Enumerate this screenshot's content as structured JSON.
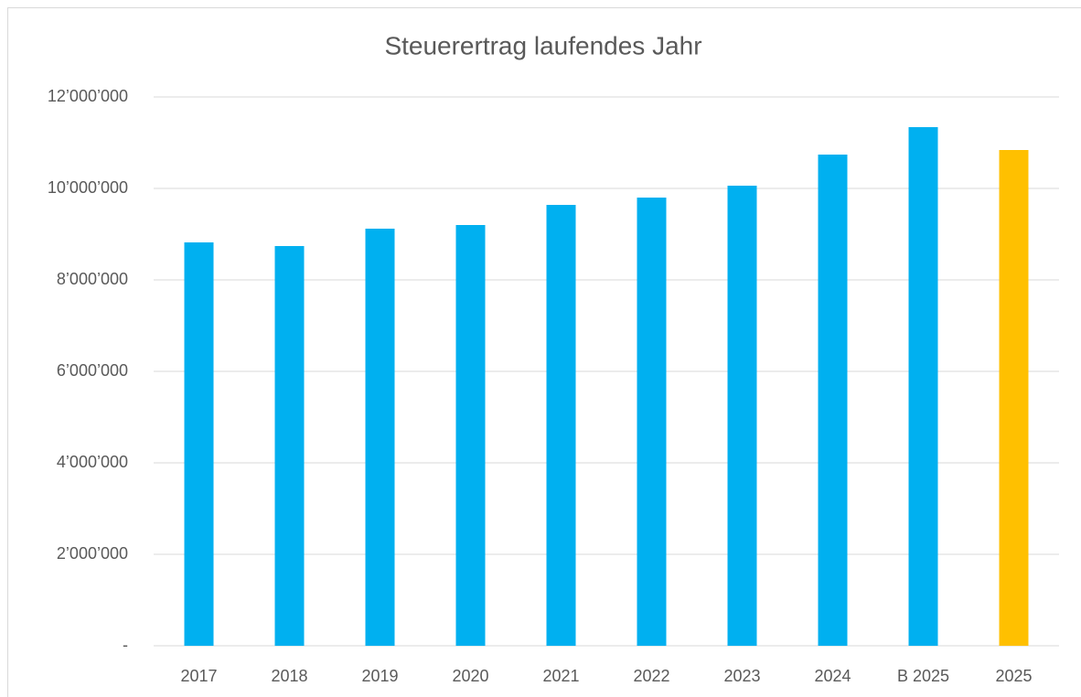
{
  "chart_data": {
    "type": "bar",
    "title": "Steuerertrag laufendes Jahr",
    "categories": [
      "2017",
      "2018",
      "2019",
      "2020",
      "2021",
      "2022",
      "2023",
      "2024",
      "B 2025",
      "2025"
    ],
    "values": [
      8820000,
      8740000,
      9120000,
      9200000,
      9640000,
      9800000,
      10060000,
      10740000,
      11340000,
      10840000
    ],
    "colors": [
      "#00b0f0",
      "#00b0f0",
      "#00b0f0",
      "#00b0f0",
      "#00b0f0",
      "#00b0f0",
      "#00b0f0",
      "#00b0f0",
      "#00b0f0",
      "#ffc000"
    ],
    "ylim": [
      0,
      12000000
    ],
    "yticks": [
      {
        "value": 0,
        "label": "-"
      },
      {
        "value": 2000000,
        "label": "2’000’000"
      },
      {
        "value": 4000000,
        "label": "4’000’000"
      },
      {
        "value": 6000000,
        "label": "6’000’000"
      },
      {
        "value": 8000000,
        "label": "8’000’000"
      },
      {
        "value": 10000000,
        "label": "10’000’000"
      },
      {
        "value": 12000000,
        "label": "12’000’000"
      }
    ],
    "grid": true
  }
}
